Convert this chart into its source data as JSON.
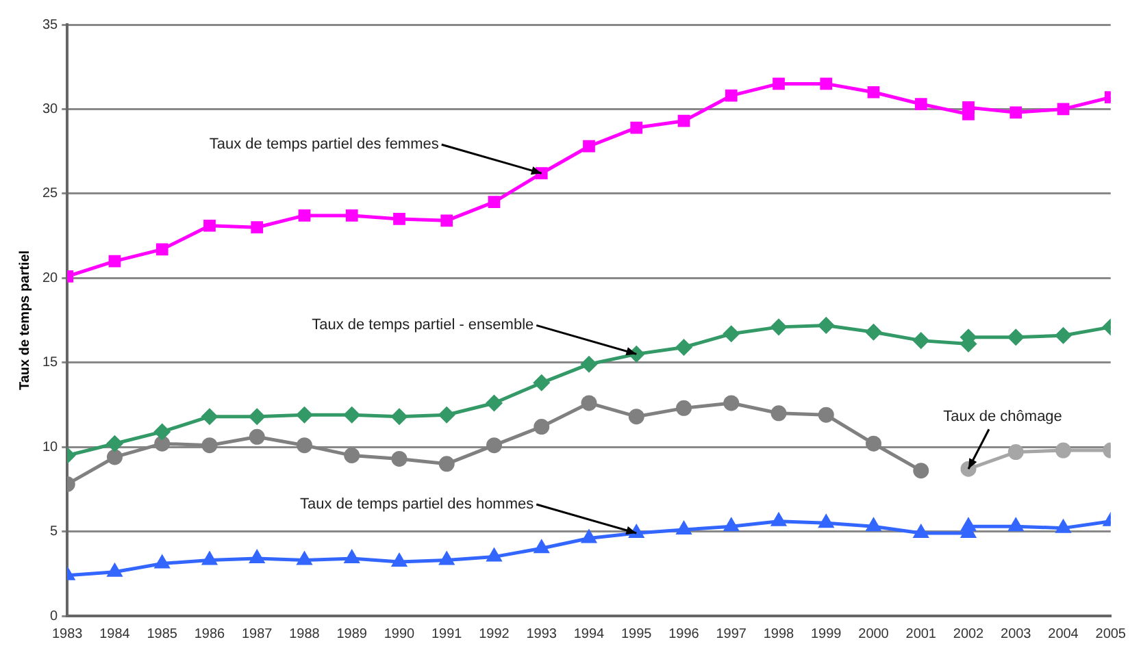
{
  "chart_data": {
    "type": "line",
    "ylabel": "Taux de temps partiel",
    "xlim": [
      1983,
      2005
    ],
    "xticks": [
      1983,
      1984,
      1985,
      1986,
      1987,
      1988,
      1989,
      1990,
      1991,
      1992,
      1993,
      1994,
      1995,
      1996,
      1997,
      1998,
      1999,
      2000,
      2001,
      2002,
      2003,
      2004,
      2005
    ],
    "ylim": [
      0,
      35
    ],
    "yticks": [
      0,
      5,
      10,
      15,
      20,
      25,
      30,
      35
    ],
    "grid": "y",
    "legend": false,
    "series": [
      {
        "color": "#ff00ff",
        "marker": "square",
        "x": [
          1983,
          1984,
          1985,
          1986,
          1987,
          1988,
          1989,
          1990,
          1991,
          1992,
          1993,
          1994,
          1995,
          1996,
          1997,
          1998,
          1999,
          2000,
          2001,
          2002
        ],
        "values": [
          20.1,
          21.0,
          21.7,
          23.1,
          23.0,
          23.7,
          23.7,
          23.5,
          23.4,
          24.5,
          26.2,
          27.8,
          28.9,
          29.3,
          30.8,
          31.5,
          31.5,
          31.0,
          30.3,
          29.7
        ]
      },
      {
        "color": "#ff00ff",
        "marker": "square",
        "x": [
          2002,
          2003,
          2004,
          2005
        ],
        "values": [
          30.1,
          29.8,
          30.0,
          30.7
        ]
      },
      {
        "color": "#339966",
        "marker": "diamond",
        "x": [
          1983,
          1984,
          1985,
          1986,
          1987,
          1988,
          1989,
          1990,
          1991,
          1992,
          1993,
          1994,
          1995,
          1996,
          1997,
          1998,
          1999,
          2000,
          2001,
          2002
        ],
        "values": [
          9.5,
          10.2,
          10.9,
          11.8,
          11.8,
          11.9,
          11.9,
          11.8,
          11.9,
          12.6,
          13.8,
          14.9,
          15.5,
          15.9,
          16.7,
          17.1,
          17.2,
          16.8,
          16.3,
          16.1
        ]
      },
      {
        "color": "#339966",
        "marker": "diamond",
        "x": [
          2002,
          2003,
          2004,
          2005
        ],
        "values": [
          16.5,
          16.5,
          16.6,
          17.1
        ]
      },
      {
        "color": "#808080",
        "marker": "circle",
        "x": [
          1983,
          1984,
          1985,
          1986,
          1987,
          1988,
          1989,
          1990,
          1991,
          1992,
          1993,
          1994,
          1995,
          1996,
          1997,
          1998,
          1999,
          2000,
          2001
        ],
        "values": [
          7.8,
          9.4,
          10.2,
          10.1,
          10.6,
          10.1,
          9.5,
          9.3,
          9.0,
          10.1,
          11.2,
          12.6,
          11.8,
          12.3,
          12.6,
          12.0,
          11.9,
          10.2,
          8.6
        ]
      },
      {
        "color": "#a6a6a6",
        "marker": "circle",
        "x": [
          2002,
          2003,
          2004,
          2005
        ],
        "values": [
          8.7,
          9.7,
          9.8,
          9.8
        ]
      },
      {
        "color": "#3366ff",
        "marker": "triangle",
        "x": [
          1983,
          1984,
          1985,
          1986,
          1987,
          1988,
          1989,
          1990,
          1991,
          1992,
          1993,
          1994,
          1995,
          1996,
          1997,
          1998,
          1999,
          2000,
          2001,
          2002
        ],
        "values": [
          2.4,
          2.6,
          3.1,
          3.3,
          3.4,
          3.3,
          3.4,
          3.2,
          3.3,
          3.5,
          4.0,
          4.6,
          4.9,
          5.1,
          5.3,
          5.6,
          5.5,
          5.3,
          4.9,
          4.9
        ]
      },
      {
        "color": "#3366ff",
        "marker": "triangle",
        "x": [
          2002,
          2003,
          2004,
          2005
        ],
        "values": [
          5.3,
          5.3,
          5.2,
          5.6
        ]
      }
    ],
    "annotations": [
      {
        "text": "Taux de temps partiel des femmes",
        "x": 1993,
        "y": 26.2
      },
      {
        "text": "Taux de temps partiel - ensemble",
        "x": 1995,
        "y": 15.5
      },
      {
        "text": "Taux de chômage",
        "x": 2002,
        "y": 8.7
      },
      {
        "text": "Taux de temps partiel des hommes",
        "x": 1995,
        "y": 4.9
      }
    ]
  }
}
